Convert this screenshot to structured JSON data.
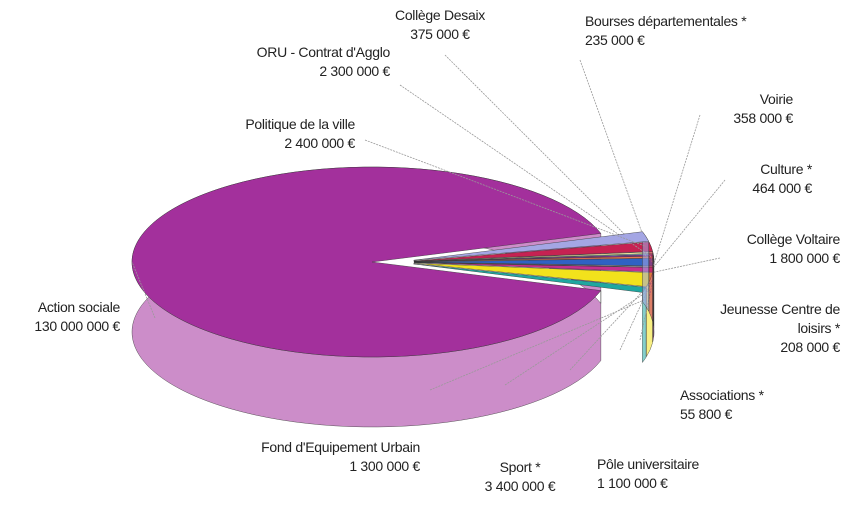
{
  "chart_data": {
    "type": "pie",
    "categories": [
      "Action sociale",
      "Fond d'Equipement Urbain",
      "Sport *",
      "Pôle universitaire",
      "Associations *",
      "Jeunesse Centre de loisirs *",
      "Collège Voltaire",
      "Culture *",
      "Voirie",
      "Bourses départementales *",
      "Collège Desaix",
      "ORU - Contrat d'Agglo",
      "Politique de la ville"
    ],
    "values": [
      130000000,
      1300000,
      3400000,
      1100000,
      55800,
      208000,
      1800000,
      464000,
      358000,
      235000,
      375000,
      2300000,
      2400000
    ],
    "value_labels": [
      "130 000 000 €",
      "1 300 000 €",
      "3 400 000 €",
      "1 100 000 €",
      "55 800 €",
      "208 000 €",
      "1 800 000 €",
      "464 000 €",
      "358 000 €",
      "235 000 €",
      "375 000 €",
      "2 300 000 €",
      "2 400 000 €"
    ],
    "colors": [
      "#a3309c",
      "#1fa7a0",
      "#f2e21c",
      "#c4308e",
      "#25256a",
      "#e6e4f2",
      "#2f62c4",
      "#ea7452",
      "#8a2fa2",
      "#a6e2e4",
      "#f7f0a4",
      "#c62252",
      "#a4a6e4"
    ]
  }
}
